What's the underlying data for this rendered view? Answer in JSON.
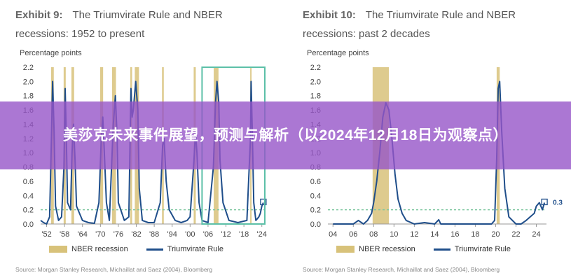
{
  "left_panel": {
    "exhibit": "Exhibit 9:",
    "title": "The Triumvirate Rule and NBER recessions: 1952 to present",
    "ylabel": "Percentage points",
    "legend_recession": "NBER recession",
    "legend_line": "Triumvirate Rule",
    "source": "Source: Morgan Stanley Research, Michaillat and Saez (2004), Bloomberg"
  },
  "right_panel": {
    "exhibit": "Exhibit 10:",
    "title": "The Triumvirate Rule and NBER recessions: past 2 decades",
    "ylabel": "Percentage points",
    "legend_recession": "NBER recession",
    "legend_line": "Triumvirate Rule",
    "source": "Source: Morgan Stanley Research, Michaillat and Saez (2004), Bloomberg",
    "latest_label": "0.3"
  },
  "banner": {
    "text": "美莎克未来事件展望，预测与解析（以2024年12月18日为观察点）"
  },
  "colors": {
    "recession": "#d8c27a",
    "line": "#1f4e8a",
    "threshold": "#7fc7a0",
    "highlight_box": "#5cc0a8",
    "banner": "#9655c8"
  },
  "chart_data": [
    {
      "type": "line",
      "title": "The Triumvirate Rule and NBER recessions: 1952 to present",
      "ylabel": "Percentage points",
      "ylim": [
        0,
        2.2
      ],
      "yticks": [
        "0.0",
        "0.2",
        "0.4",
        "0.6",
        "0.8",
        "1.0",
        "1.2",
        "1.4",
        "1.6",
        "1.8",
        "2.0",
        "2.2"
      ],
      "xlim": [
        1950,
        2025
      ],
      "xticks": [
        "'52",
        "'58",
        "'64",
        "'70",
        "'76",
        "'82",
        "'88",
        "'94",
        "'00",
        "'06",
        "'12",
        "'18",
        "'24"
      ],
      "xtick_years": [
        1952,
        1958,
        1964,
        1970,
        1976,
        1982,
        1988,
        1994,
        2000,
        2006,
        2012,
        2018,
        2024
      ],
      "threshold": 0.2,
      "recessions": [
        [
          1953.5,
          1954.4
        ],
        [
          1957.7,
          1958.4
        ],
        [
          1960.3,
          1961.2
        ],
        [
          1969.9,
          1970.9
        ],
        [
          1973.9,
          1975.2
        ],
        [
          1980.0,
          1980.6
        ],
        [
          1981.5,
          1982.9
        ],
        [
          1990.6,
          1991.2
        ],
        [
          2001.2,
          2001.9
        ],
        [
          2007.9,
          2009.5
        ],
        [
          2020.1,
          2020.4
        ]
      ],
      "series": [
        {
          "name": "Triumvirate Rule",
          "x": [
            1950,
            1951,
            1952,
            1953,
            1953.6,
            1954.0,
            1954.5,
            1955,
            1956,
            1957,
            1957.8,
            1958.2,
            1958.6,
            1959,
            1960,
            1960.5,
            1961.0,
            1961.5,
            1962,
            1964,
            1966,
            1968,
            1969.5,
            1970.3,
            1970.8,
            1971.2,
            1972,
            1973,
            1974.3,
            1975.0,
            1975.6,
            1976,
            1978,
            1979.5,
            1980.2,
            1980.6,
            1981,
            1981.8,
            1982.5,
            1983,
            1984,
            1986,
            1988,
            1990,
            1990.8,
            1991.3,
            1992,
            1993,
            1995,
            1997,
            1999,
            2000,
            2001.3,
            2001.8,
            2002.3,
            2003,
            2004,
            2006,
            2007.8,
            2008.5,
            2009.0,
            2009.6,
            2010,
            2011,
            2013,
            2016,
            2019,
            2020.2,
            2020.4,
            2020.8,
            2021.3,
            2022,
            2023,
            2023.5,
            2024,
            2024.5
          ],
          "y": [
            0.05,
            0.02,
            0.0,
            0.1,
            1.2,
            2.0,
            1.3,
            0.25,
            0.05,
            0.1,
            0.8,
            1.9,
            1.2,
            0.3,
            0.2,
            1.0,
            1.4,
            0.9,
            0.25,
            0.05,
            0.02,
            0.01,
            0.3,
            1.2,
            1.5,
            1.1,
            0.3,
            0.05,
            1.4,
            1.8,
            1.2,
            0.3,
            0.05,
            0.1,
            1.9,
            1.5,
            1.6,
            2.0,
            1.6,
            0.5,
            0.05,
            0.02,
            0.02,
            0.3,
            1.1,
            1.2,
            0.6,
            0.2,
            0.05,
            0.02,
            0.05,
            0.1,
            0.9,
            1.3,
            1.0,
            0.3,
            0.05,
            0.02,
            0.8,
            1.7,
            2.0,
            1.7,
            0.9,
            0.3,
            0.05,
            0.02,
            0.05,
            1.2,
            2.0,
            1.3,
            0.3,
            0.05,
            0.1,
            0.15,
            0.25,
            0.3
          ]
        }
      ]
    },
    {
      "type": "line",
      "title": "The Triumvirate Rule and NBER recessions: past 2 decades",
      "ylabel": "Percentage points",
      "ylim": [
        0,
        2.2
      ],
      "yticks": [
        "0.0",
        "0.2",
        "0.4",
        "0.6",
        "0.8",
        "1.0",
        "1.2",
        "1.4",
        "1.6",
        "1.8",
        "2.0",
        "2.2"
      ],
      "xlim": [
        2003.5,
        2025
      ],
      "xticks": [
        "04",
        "06",
        "08",
        "10",
        "12",
        "14",
        "16",
        "18",
        "20",
        "22",
        "24"
      ],
      "xtick_years": [
        2004,
        2006,
        2008,
        2010,
        2012,
        2014,
        2016,
        2018,
        2020,
        2022,
        2024
      ],
      "threshold": 0.2,
      "recessions": [
        [
          2007.9,
          2009.5
        ],
        [
          2020.1,
          2020.4
        ]
      ],
      "series": [
        {
          "name": "Triumvirate Rule",
          "x": [
            2004,
            2005,
            2006,
            2006.5,
            2007,
            2007.4,
            2007.8,
            2008.0,
            2008.3,
            2008.6,
            2008.9,
            2009.2,
            2009.5,
            2009.8,
            2010.1,
            2010.4,
            2010.8,
            2011.2,
            2012,
            2013,
            2014,
            2014.4,
            2014.6,
            2015,
            2016,
            2017,
            2018,
            2019,
            2019.6,
            2019.9,
            2020.1,
            2020.25,
            2020.4,
            2020.6,
            2020.9,
            2021.3,
            2022,
            2022.5,
            2023,
            2023.4,
            2023.8,
            2024.0,
            2024.3,
            2024.6,
            2024.8
          ],
          "y": [
            0.0,
            0.0,
            0.0,
            0.05,
            0.0,
            0.05,
            0.15,
            0.3,
            0.6,
            1.0,
            1.5,
            1.7,
            1.6,
            1.2,
            0.7,
            0.35,
            0.15,
            0.05,
            0.0,
            0.02,
            0.0,
            0.06,
            0.0,
            0.0,
            0.0,
            0.0,
            0.0,
            0.0,
            0.0,
            0.05,
            0.9,
            1.9,
            2.0,
            1.3,
            0.5,
            0.1,
            0.0,
            0.0,
            0.05,
            0.1,
            0.15,
            0.25,
            0.3,
            0.2,
            0.3
          ]
        }
      ]
    }
  ]
}
